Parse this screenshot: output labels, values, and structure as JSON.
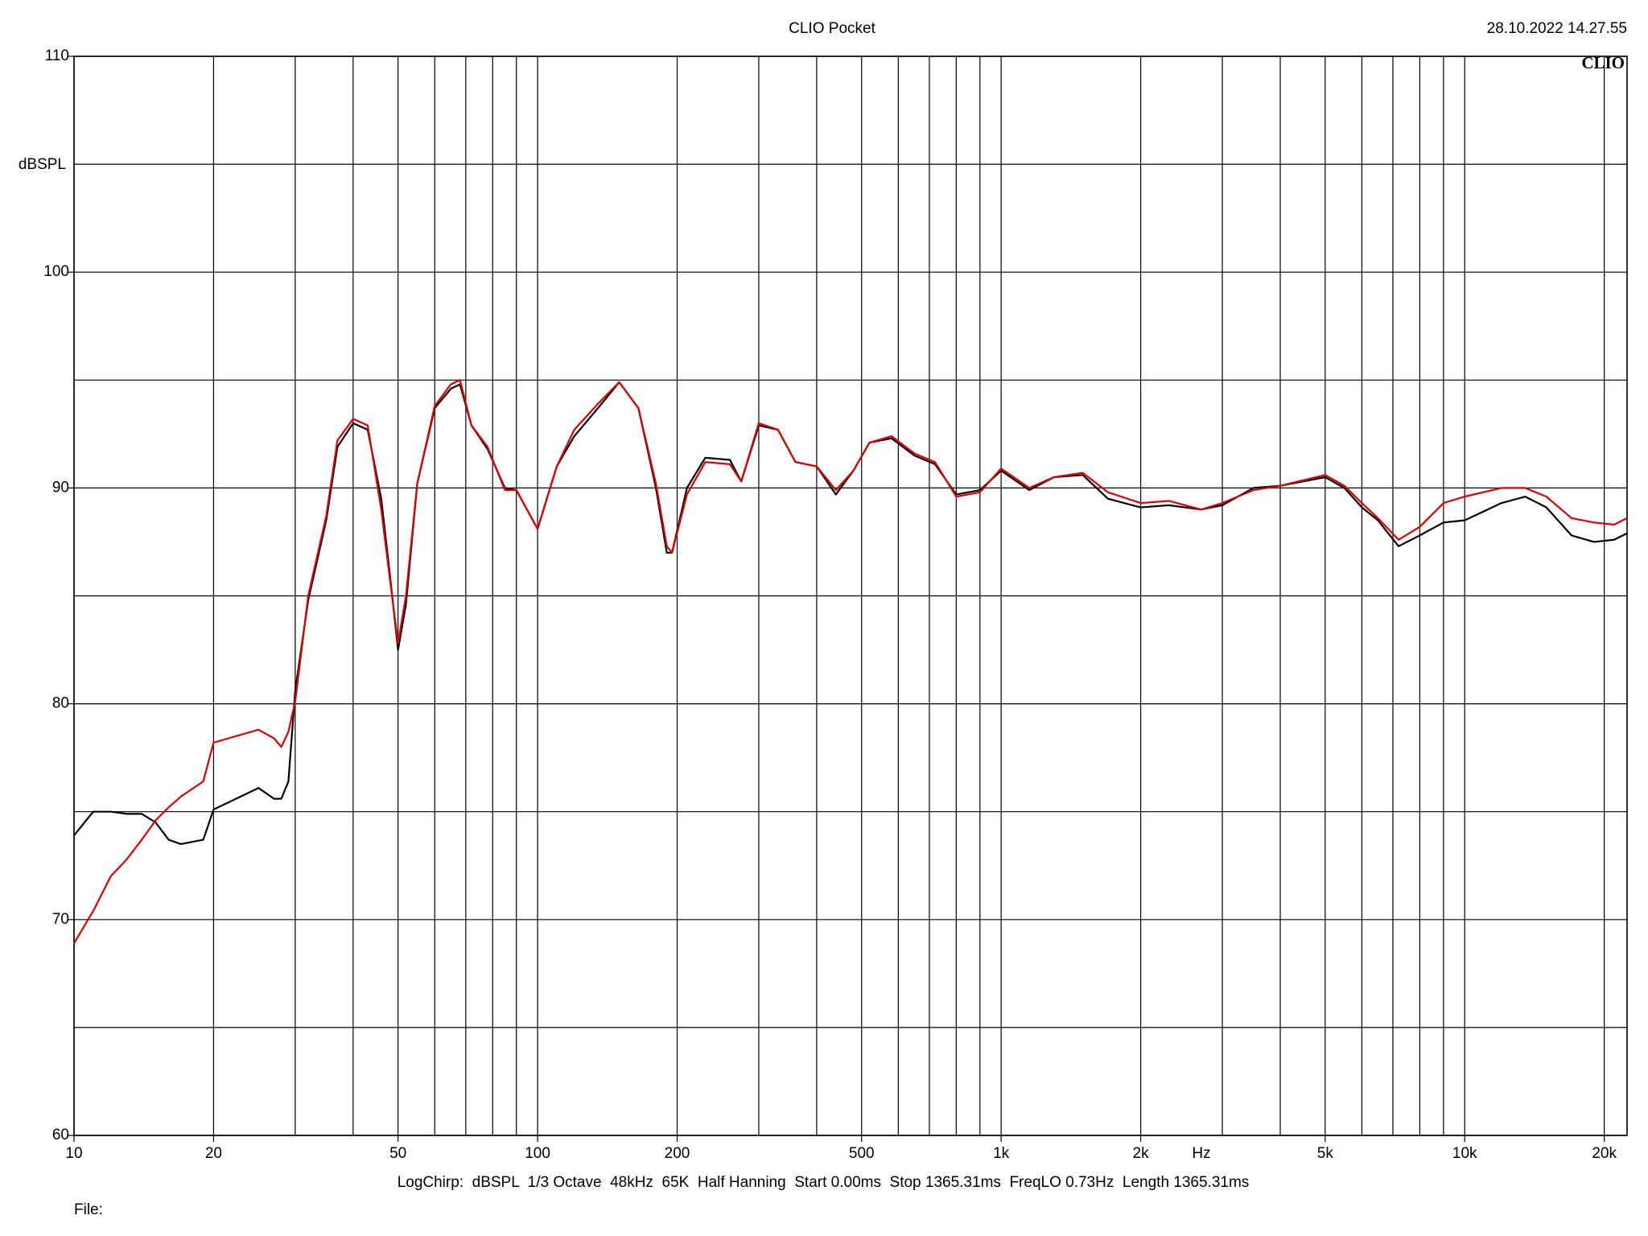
{
  "chart_data": {
    "type": "line",
    "title": "CLIO Pocket",
    "timestamp": "28.10.2022 14.27.55",
    "logo": "CLIO",
    "y_label": "dBSPL",
    "x_label": "Hz",
    "footer": "LogChirp:  dBSPL  1/3 Octave  48kHz  65K  Half Hanning  Start 0.00ms  Stop 1365.31ms  FreqLO 0.73Hz  Length 1365.31ms",
    "file_label": "File:",
    "x_log": true,
    "grid": true,
    "xlim": [
      10,
      22400
    ],
    "ylim": [
      60,
      110
    ],
    "xticks": [
      10,
      20,
      50,
      100,
      200,
      500,
      {
        "value": 1000,
        "label": "1k"
      },
      {
        "value": 2000,
        "label": "2k"
      },
      {
        "value": 5000,
        "label": "5k"
      },
      {
        "value": 10000,
        "label": "10k"
      },
      {
        "value": 20000,
        "label": "20k"
      }
    ],
    "x_minor_grid": [
      30,
      40,
      60,
      70,
      80,
      90,
      300,
      400,
      600,
      700,
      800,
      900,
      3000,
      4000,
      6000,
      7000,
      8000,
      9000
    ],
    "yticks": [
      60,
      70,
      80,
      90,
      100,
      110
    ],
    "y_minor_grid": [
      65,
      75,
      85,
      95,
      105
    ],
    "x": [
      10,
      11,
      12,
      13,
      14,
      15,
      16,
      17,
      19,
      20,
      25,
      27,
      28,
      29,
      30,
      32,
      35,
      37,
      40,
      43,
      46,
      48,
      50,
      52,
      55,
      60,
      65,
      68,
      72,
      78,
      85,
      90,
      100,
      110,
      120,
      135,
      150,
      165,
      180,
      190,
      195,
      210,
      230,
      260,
      275,
      300,
      330,
      360,
      400,
      440,
      480,
      520,
      580,
      650,
      720,
      800,
      900,
      1000,
      1150,
      1300,
      1500,
      1700,
      2000,
      2300,
      2700,
      3000,
      3500,
      4000,
      5000,
      5500,
      6000,
      6500,
      7200,
      8000,
      9000,
      10000,
      12000,
      13500,
      15000,
      17000,
      19000,
      21000,
      22400
    ],
    "series": [
      {
        "color": "#000000",
        "values": [
          73.9,
          75.0,
          75.0,
          74.9,
          74.9,
          74.5,
          73.7,
          73.5,
          73.7,
          75.1,
          76.1,
          75.6,
          75.6,
          76.4,
          80.6,
          84.8,
          88.5,
          91.9,
          93.0,
          92.7,
          89.5,
          86.0,
          82.5,
          84.6,
          90.2,
          93.7,
          94.6,
          94.8,
          92.9,
          91.8,
          90.0,
          89.9,
          88.1,
          91.0,
          92.4,
          93.7,
          94.9,
          93.7,
          90.0,
          87.0,
          87.0,
          90.0,
          91.4,
          91.3,
          90.3,
          92.9,
          92.7,
          91.2,
          91.0,
          89.7,
          90.8,
          92.1,
          92.3,
          91.5,
          91.1,
          89.7,
          89.9,
          90.8,
          89.9,
          90.5,
          90.6,
          89.5,
          89.1,
          89.2,
          89.0,
          89.2,
          90.0,
          90.1,
          90.5,
          90.0,
          89.1,
          88.5,
          87.3,
          87.8,
          88.4,
          88.5,
          89.3,
          89.6,
          89.1,
          87.8,
          87.5,
          87.6,
          87.9
        ]
      },
      {
        "color": "#e00000",
        "values": [
          68.9,
          70.4,
          72.0,
          72.8,
          73.7,
          74.6,
          75.2,
          75.7,
          76.4,
          78.2,
          78.8,
          78.4,
          78.0,
          78.7,
          80.1,
          85.0,
          88.7,
          92.2,
          93.2,
          92.9,
          89.0,
          85.8,
          82.8,
          85.0,
          90.2,
          93.8,
          94.8,
          95.0,
          92.9,
          91.9,
          89.9,
          89.9,
          88.1,
          91.0,
          92.7,
          93.9,
          94.9,
          93.7,
          90.2,
          87.3,
          87.0,
          89.7,
          91.2,
          91.1,
          90.3,
          93.0,
          92.7,
          91.2,
          91.0,
          89.9,
          90.8,
          92.1,
          92.4,
          91.6,
          91.2,
          89.6,
          89.8,
          90.9,
          90.0,
          90.5,
          90.7,
          89.8,
          89.3,
          89.4,
          89.0,
          89.3,
          89.9,
          90.1,
          90.6,
          90.1,
          89.3,
          88.6,
          87.6,
          88.2,
          89.3,
          89.6,
          90.0,
          90.0,
          89.6,
          88.6,
          88.4,
          88.3,
          88.6
        ]
      }
    ]
  }
}
